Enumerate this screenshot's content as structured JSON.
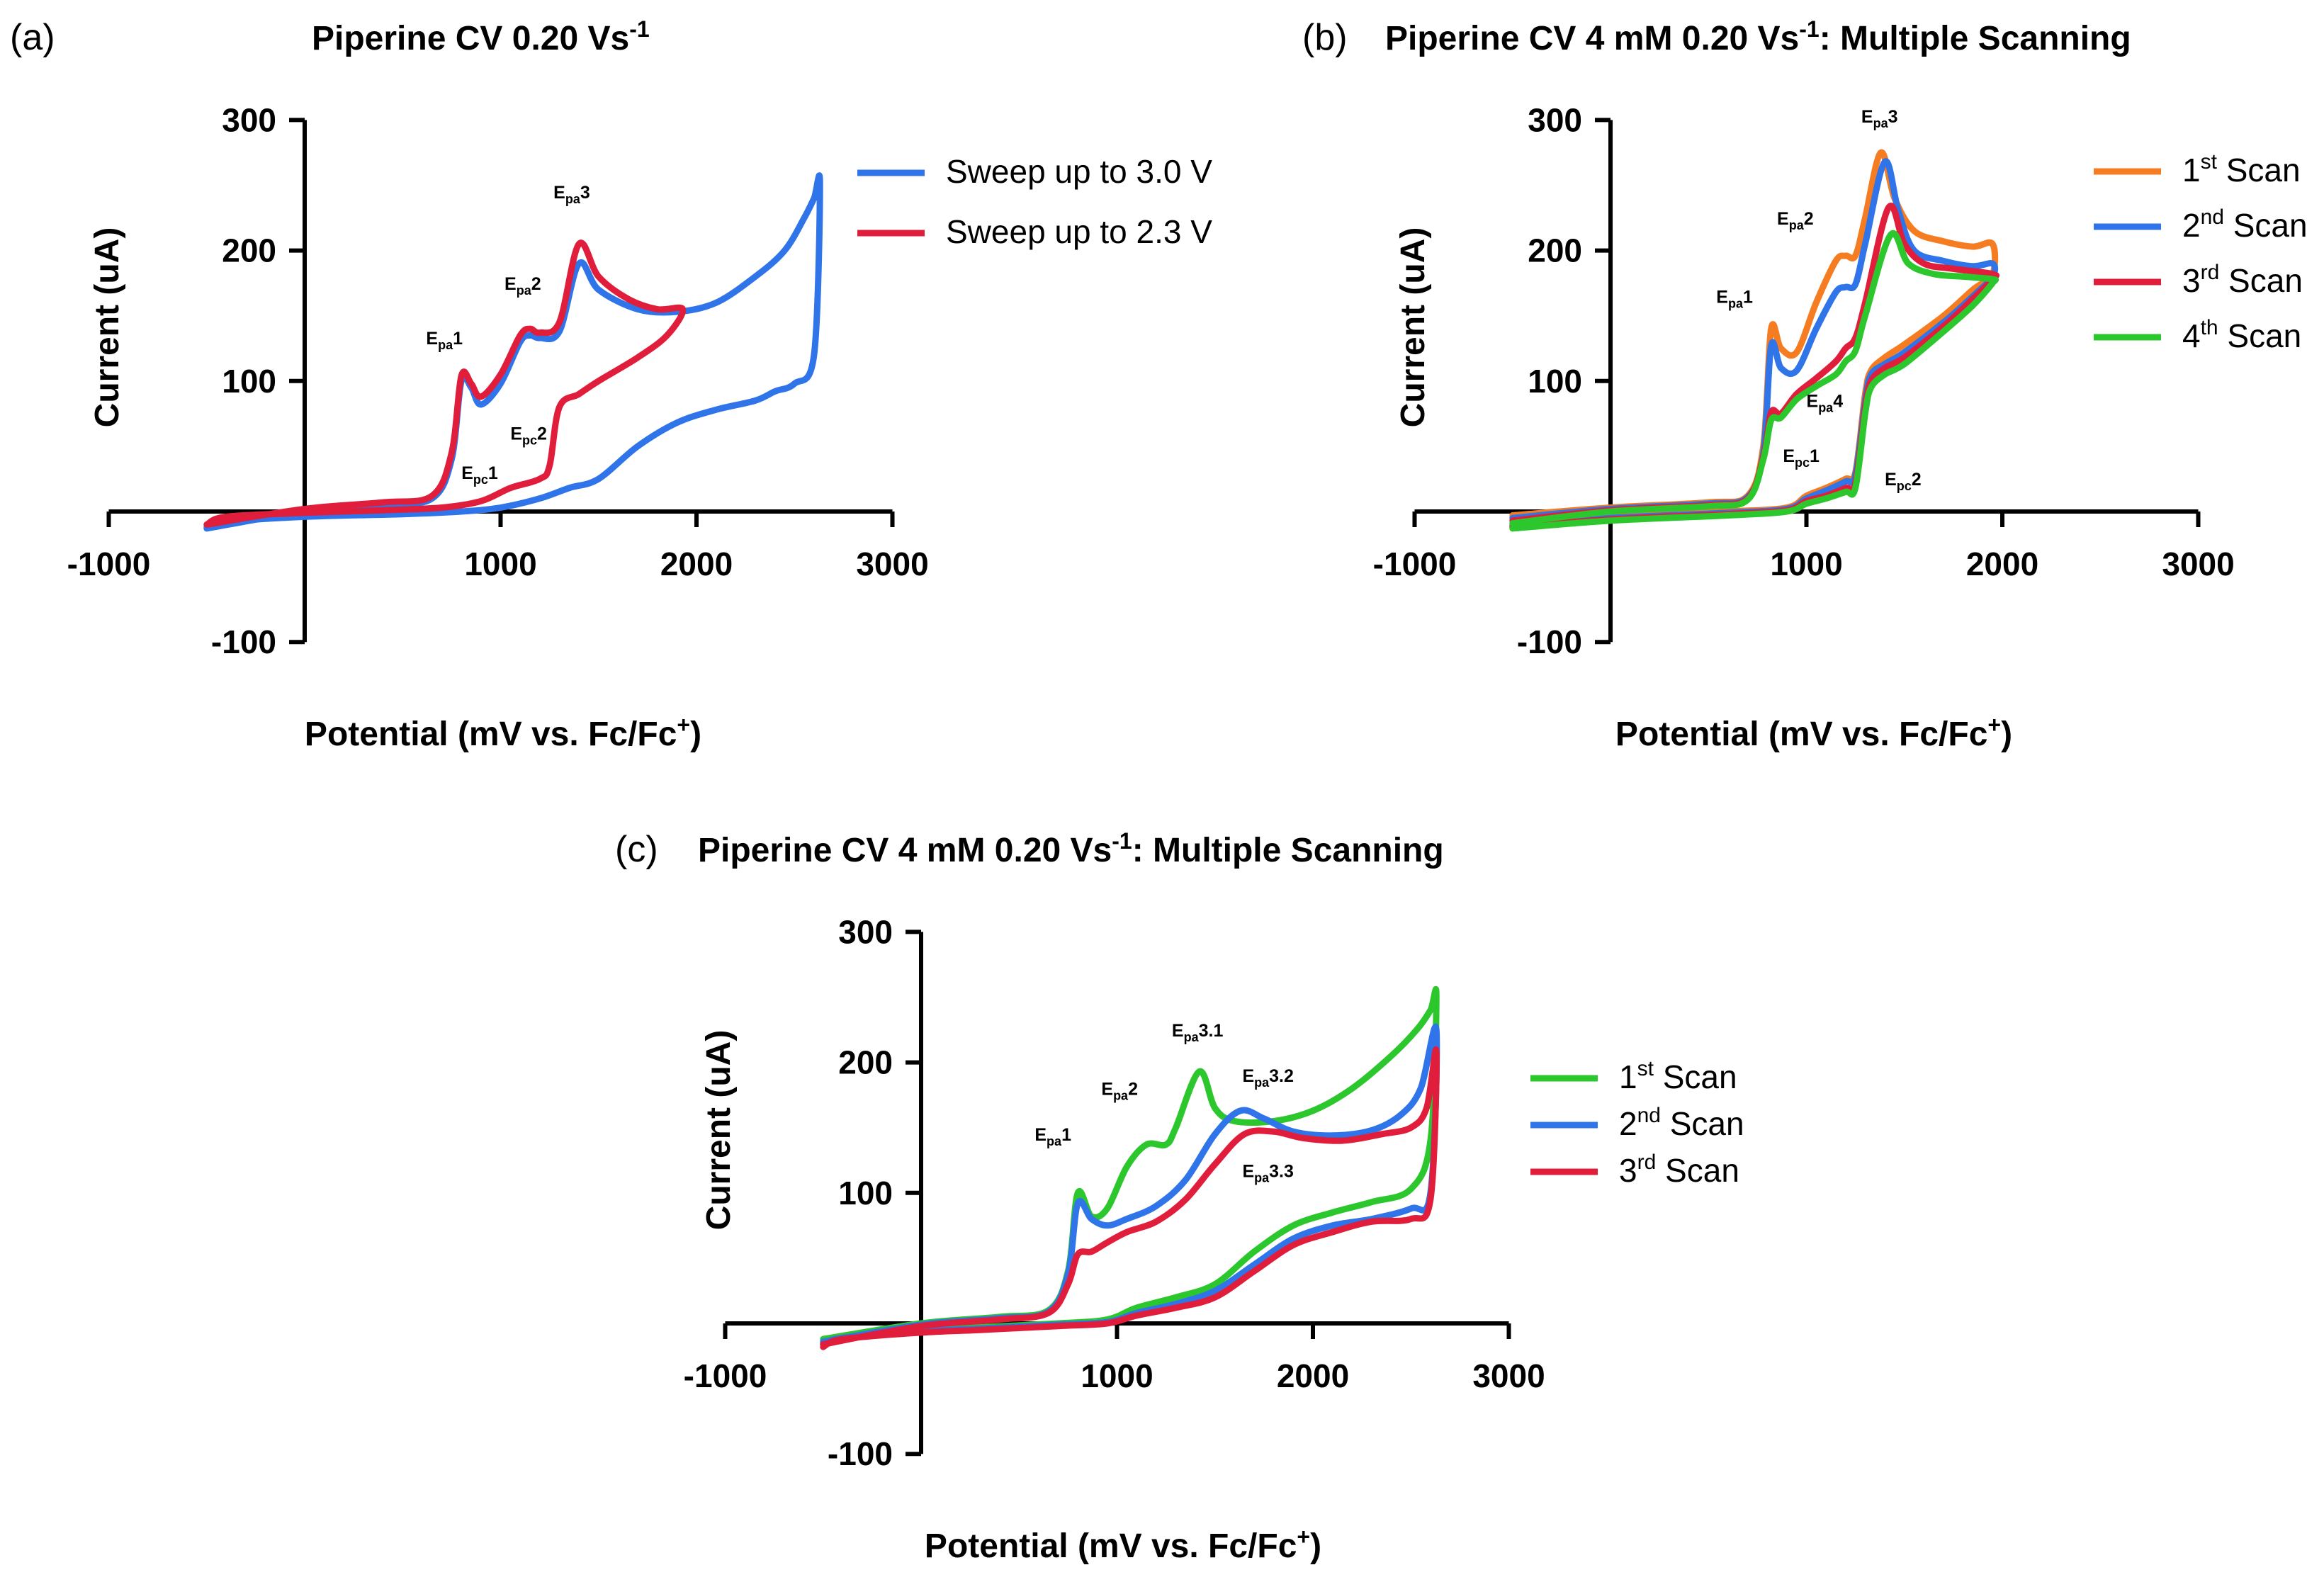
{
  "figure": {
    "panels": [
      {
        "id": "a",
        "letter": "(a)",
        "title_main": "Piperine CV 0.20 Vs",
        "title_sup": "-1",
        "title_rest": ""
      },
      {
        "id": "b",
        "letter": "(b)",
        "title_main": "Piperine CV 4 mM 0.20 Vs",
        "title_sup": "-1",
        "title_rest": ": Multiple Scanning"
      },
      {
        "id": "c",
        "letter": "(c)",
        "title_main": "Piperine CV 4 mM 0.20 Vs",
        "title_sup": "-1",
        "title_rest": ": Multiple Scanning"
      }
    ]
  },
  "chart_data": [
    {
      "id": "a",
      "type": "line",
      "title": "Piperine CV 0.20 Vs-1",
      "xlabel_main": "Potential (mV vs. Fc/Fc",
      "xlabel_sup": "+",
      "xlabel_end": ")",
      "ylabel": "Current (uA)",
      "xlim": [
        -1000,
        3000
      ],
      "ylim": [
        -100,
        300
      ],
      "xticks": [
        -1000,
        1000,
        2000,
        3000
      ],
      "yticks": [
        -100,
        100,
        200,
        300
      ],
      "legend_position": "top-right",
      "series": [
        {
          "name": "Sweep up to 3.0 V",
          "sup": "",
          "rest": "",
          "color": "#2f74e8",
          "x": [
            -500,
            0,
            400,
            650,
            750,
            800,
            850,
            900,
            1000,
            1100,
            1150,
            1200,
            1300,
            1400,
            1500,
            1700,
            1900,
            2100,
            2300,
            2450,
            2550,
            2600,
            2630,
            2600,
            2500,
            2400,
            2300,
            2100,
            1900,
            1700,
            1500,
            1350,
            1200,
            1000,
            800,
            500,
            0,
            -400,
            -500
          ],
          "y": [
            -13,
            0,
            5,
            10,
            40,
            100,
            95,
            82,
            98,
            130,
            135,
            133,
            138,
            190,
            170,
            155,
            153,
            160,
            180,
            200,
            225,
            240,
            250,
            120,
            98,
            92,
            85,
            78,
            68,
            50,
            25,
            18,
            10,
            3,
            0,
            -2,
            -4,
            -8,
            -12
          ]
        },
        {
          "name": "Sweep up to 2.3 V",
          "sup": "",
          "rest": "",
          "color": "#e01e3c",
          "x": [
            -500,
            0,
            400,
            650,
            750,
            800,
            850,
            900,
            1000,
            1100,
            1150,
            1200,
            1300,
            1400,
            1500,
            1650,
            1800,
            1930,
            1850,
            1700,
            1500,
            1400,
            1300,
            1250,
            1200,
            1050,
            900,
            700,
            400,
            0,
            -400,
            -500
          ],
          "y": [
            -10,
            2,
            7,
            12,
            45,
            104,
            98,
            88,
            105,
            135,
            140,
            137,
            145,
            205,
            180,
            163,
            155,
            155,
            135,
            118,
            100,
            90,
            80,
            35,
            25,
            18,
            8,
            3,
            1,
            -1,
            -4,
            -10
          ]
        }
      ],
      "annotations": [
        {
          "main": "E",
          "sub": "pa",
          "num": "1",
          "x": 620,
          "y": 128
        },
        {
          "main": "E",
          "sub": "pa",
          "num": "2",
          "x": 1020,
          "y": 170
        },
        {
          "main": "E",
          "sub": "pa",
          "num": "3",
          "x": 1270,
          "y": 240
        },
        {
          "main": "E",
          "sub": "pc",
          "num": "1",
          "x": 800,
          "y": 25
        },
        {
          "main": "E",
          "sub": "pc",
          "num": "2",
          "x": 1050,
          "y": 55
        }
      ]
    },
    {
      "id": "b",
      "type": "line",
      "title": "Piperine CV 4 mM 0.20 Vs-1: Multiple Scanning",
      "xlabel_main": "Potential (mV vs. Fc/Fc",
      "xlabel_sup": "+",
      "xlabel_end": ")",
      "ylabel": "Current (uA)",
      "xlim": [
        -1000,
        3000
      ],
      "ylim": [
        -100,
        300
      ],
      "xticks": [
        -1000,
        1000,
        2000,
        3000
      ],
      "yticks": [
        -100,
        100,
        200,
        300
      ],
      "legend_position": "top-right",
      "series": [
        {
          "name": "1",
          "sup": "st",
          "rest": " Scan",
          "color": "#f57c20",
          "x": [
            -500,
            0,
            500,
            700,
            780,
            820,
            870,
            950,
            1050,
            1150,
            1200,
            1250,
            1300,
            1380,
            1450,
            1550,
            1700,
            1850,
            1950,
            1950,
            1850,
            1700,
            1500,
            1400,
            1330,
            1300,
            1250,
            1200,
            1100,
            1000,
            900,
            600,
            0,
            -500
          ],
          "y": [
            -3,
            3,
            7,
            12,
            50,
            140,
            125,
            122,
            160,
            192,
            196,
            196,
            225,
            275,
            240,
            215,
            207,
            203,
            205,
            182,
            170,
            150,
            128,
            118,
            108,
            90,
            30,
            25,
            18,
            12,
            3,
            0,
            -4,
            -10
          ]
        },
        {
          "name": "2",
          "sup": "nd",
          "rest": " Scan",
          "color": "#2f74e8",
          "x": [
            -500,
            0,
            500,
            700,
            780,
            820,
            870,
            950,
            1050,
            1150,
            1200,
            1250,
            1300,
            1400,
            1470,
            1550,
            1700,
            1850,
            1950,
            1950,
            1850,
            1700,
            1500,
            1400,
            1330,
            1300,
            1250,
            1200,
            1100,
            1000,
            900,
            600,
            0,
            -500
          ],
          "y": [
            -5,
            2,
            6,
            11,
            45,
            127,
            110,
            108,
            140,
            168,
            172,
            174,
            205,
            268,
            230,
            200,
            192,
            188,
            190,
            180,
            165,
            145,
            122,
            113,
            105,
            85,
            28,
            23,
            16,
            10,
            2,
            -1,
            -5,
            -11
          ]
        },
        {
          "name": "3",
          "sup": "rd",
          "rest": " Scan",
          "color": "#e01e3c",
          "x": [
            -500,
            0,
            500,
            700,
            780,
            820,
            870,
            950,
            1050,
            1150,
            1200,
            1250,
            1300,
            1420,
            1500,
            1600,
            1750,
            1950,
            1950,
            1850,
            1700,
            1500,
            1400,
            1330,
            1300,
            1250,
            1200,
            1100,
            1000,
            900,
            600,
            0,
            -500
          ],
          "y": [
            -7,
            1,
            5,
            10,
            42,
            76,
            75,
            90,
            102,
            115,
            125,
            133,
            160,
            233,
            205,
            190,
            186,
            182,
            178,
            163,
            142,
            118,
            110,
            100,
            80,
            22,
            18,
            12,
            8,
            1,
            -2,
            -6,
            -12
          ]
        },
        {
          "name": "4",
          "sup": "th",
          "rest": " Scan",
          "color": "#2cc72c",
          "x": [
            -500,
            0,
            500,
            700,
            780,
            820,
            870,
            950,
            1050,
            1150,
            1200,
            1250,
            1300,
            1430,
            1520,
            1650,
            1800,
            1950,
            1950,
            1850,
            1700,
            1500,
            1400,
            1330,
            1300,
            1250,
            1200,
            1100,
            1000,
            900,
            600,
            0,
            -500
          ],
          "y": [
            -9,
            0,
            4,
            9,
            40,
            70,
            72,
            86,
            96,
            105,
            115,
            123,
            150,
            212,
            190,
            182,
            180,
            178,
            175,
            158,
            138,
            113,
            105,
            95,
            75,
            18,
            15,
            10,
            6,
            0,
            -3,
            -7,
            -13
          ]
        }
      ],
      "annotations": [
        {
          "main": "E",
          "sub": "pa",
          "num": "1",
          "x": 540,
          "y": 160
        },
        {
          "main": "E",
          "sub": "pa",
          "num": "2",
          "x": 850,
          "y": 220
        },
        {
          "main": "E",
          "sub": "pa",
          "num": "3",
          "x": 1280,
          "y": 298
        },
        {
          "main": "E",
          "sub": "pa",
          "num": "4",
          "x": 1000,
          "y": 80
        },
        {
          "main": "E",
          "sub": "pc",
          "num": "1",
          "x": 880,
          "y": 38
        },
        {
          "main": "E",
          "sub": "pc",
          "num": "2",
          "x": 1400,
          "y": 20
        }
      ]
    },
    {
      "id": "c",
      "type": "line",
      "title": "Piperine CV 4 mM 0.20 Vs-1: Multiple Scanning",
      "xlabel_main": "Potential (mV vs. Fc/Fc",
      "xlabel_sup": "+",
      "xlabel_end": ")",
      "ylabel": "Current (uA)",
      "xlim": [
        -1000,
        3000
      ],
      "ylim": [
        -100,
        300
      ],
      "xticks": [
        -1000,
        1000,
        2000,
        3000
      ],
      "yticks": [
        -100,
        100,
        200,
        300
      ],
      "legend_position": "top-right",
      "series": [
        {
          "name": "1",
          "sup": "st",
          "rest": " Scan",
          "color": "#2cc72c",
          "x": [
            -500,
            0,
            400,
            650,
            750,
            800,
            870,
            950,
            1050,
            1150,
            1250,
            1300,
            1420,
            1500,
            1600,
            1800,
            2000,
            2200,
            2400,
            2530,
            2600,
            2630,
            2600,
            2500,
            2300,
            2100,
            1900,
            1700,
            1500,
            1300,
            1100,
            950,
            700,
            300,
            0,
            -400,
            -500
          ],
          "y": [
            -12,
            0,
            5,
            10,
            40,
            100,
            82,
            88,
            120,
            137,
            137,
            150,
            193,
            165,
            155,
            155,
            163,
            180,
            205,
            225,
            240,
            250,
            140,
            103,
            93,
            85,
            75,
            55,
            30,
            20,
            12,
            3,
            0,
            -3,
            -5,
            -10,
            -15
          ]
        },
        {
          "name": "2",
          "sup": "nd",
          "rest": " Scan",
          "color": "#2f74e8",
          "x": [
            -500,
            0,
            400,
            650,
            750,
            800,
            870,
            950,
            1050,
            1200,
            1350,
            1500,
            1630,
            1750,
            1900,
            2100,
            2300,
            2450,
            2550,
            2630,
            2600,
            2500,
            2300,
            2100,
            1900,
            1700,
            1500,
            1300,
            1100,
            950,
            700,
            300,
            0,
            -400,
            -500
          ],
          "y": [
            -14,
            -1,
            4,
            9,
            38,
            92,
            80,
            75,
            80,
            90,
            110,
            145,
            163,
            157,
            147,
            144,
            148,
            160,
            180,
            225,
            100,
            88,
            80,
            75,
            65,
            45,
            25,
            15,
            8,
            1,
            -1,
            -4,
            -6,
            -11,
            -16
          ]
        },
        {
          "name": "3",
          "sup": "rd",
          "rest": " Scan",
          "color": "#e01e3c",
          "x": [
            -500,
            0,
            400,
            650,
            750,
            800,
            870,
            950,
            1050,
            1200,
            1350,
            1500,
            1650,
            1800,
            1950,
            2150,
            2350,
            2500,
            2580,
            2630,
            2600,
            2500,
            2300,
            2100,
            1900,
            1700,
            1500,
            1300,
            1100,
            950,
            700,
            300,
            0,
            -400,
            -500
          ],
          "y": [
            -16,
            -2,
            3,
            8,
            30,
            53,
            55,
            62,
            70,
            78,
            95,
            122,
            145,
            147,
            142,
            140,
            145,
            150,
            165,
            208,
            95,
            80,
            78,
            70,
            60,
            40,
            20,
            12,
            6,
            0,
            -2,
            -5,
            -7,
            -12,
            -18
          ]
        }
      ],
      "annotations": [
        {
          "main": "E",
          "sub": "pa",
          "num": "1",
          "x": 580,
          "y": 140
        },
        {
          "main": "E",
          "sub": "pa",
          "num": "2",
          "x": 920,
          "y": 175
        },
        {
          "main": "E",
          "sub": "pa",
          "num": "3.1",
          "x": 1280,
          "y": 220
        },
        {
          "main": "E",
          "sub": "pa",
          "num": "3.2",
          "x": 1640,
          "y": 185
        },
        {
          "main": "E",
          "sub": "pa",
          "num": "3.3",
          "x": 1640,
          "y": 112
        }
      ]
    }
  ]
}
